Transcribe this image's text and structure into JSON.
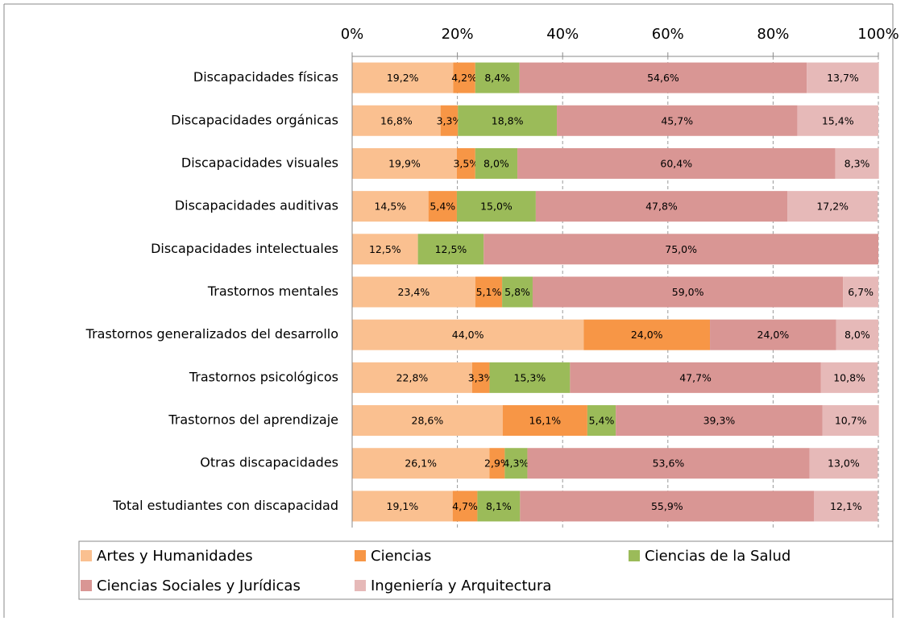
{
  "chart_data": {
    "type": "stacked-bar-horizontal",
    "categories": [
      "Discapacidades físicas",
      "Discapacidades orgánicas",
      "Discapacidades visuales",
      "Discapacidades auditivas",
      "Discapacidades intelectuales",
      "Trastornos mentales",
      "Trastornos generalizados del desarrollo",
      "Trastornos psicológicos",
      "Trastornos del aprendizaje",
      "Otras discapacidades",
      "Total estudiantes con discapacidad"
    ],
    "series": [
      {
        "name": "Artes y Humanidades",
        "color": "#fac090",
        "values": [
          19.2,
          16.8,
          19.9,
          14.5,
          12.5,
          23.4,
          44.0,
          22.8,
          28.6,
          26.1,
          19.1
        ],
        "value_labels": [
          "19,2%",
          "16,8%",
          "19,9%",
          "14,5%",
          "12,5%",
          "23,4%",
          "44,0%",
          "22,8%",
          "28,6%",
          "26,1%",
          "19,1%"
        ]
      },
      {
        "name": "Ciencias",
        "color": "#f79646",
        "values": [
          4.2,
          3.3,
          3.5,
          5.4,
          null,
          5.1,
          24.0,
          3.3,
          16.1,
          2.9,
          4.7
        ],
        "value_labels": [
          "4,2%",
          "3,3%",
          "3,5%",
          "5,4%",
          null,
          "5,1%",
          "24,0%",
          "3,3%",
          "16,1%",
          "2,9%",
          "4,7%"
        ]
      },
      {
        "name": "Ciencias de la Salud",
        "color": "#9bbb59",
        "values": [
          8.4,
          18.8,
          8.0,
          15.0,
          12.5,
          5.8,
          null,
          15.3,
          5.4,
          4.3,
          8.1
        ],
        "value_labels": [
          "8,4%",
          "18,8%",
          "8,0%",
          "15,0%",
          "12,5%",
          "5,8%",
          null,
          "15,3%",
          "5,4%",
          "4,3%",
          "8,1%"
        ]
      },
      {
        "name": "Ciencias Sociales y Jurídicas",
        "color": "#d99694",
        "values": [
          54.6,
          45.7,
          60.4,
          47.8,
          75.0,
          59.0,
          24.0,
          47.7,
          39.3,
          53.6,
          55.9
        ],
        "value_labels": [
          "54,6%",
          "45,7%",
          "60,4%",
          "47,8%",
          "75,0%",
          "59,0%",
          "24,0%",
          "47,7%",
          "39,3%",
          "53,6%",
          "55,9%"
        ]
      },
      {
        "name": "Ingeniería y Arquitectura",
        "color": "#e6b9b8",
        "values": [
          13.7,
          15.4,
          8.3,
          17.2,
          null,
          6.7,
          8.0,
          10.8,
          10.7,
          13.0,
          12.1
        ],
        "value_labels": [
          "13,7%",
          "15,4%",
          "8,3%",
          "17,2%",
          null,
          "6,7%",
          "8,0%",
          "10,8%",
          "10,7%",
          "13,0%",
          "12,1%"
        ]
      }
    ],
    "xlim": [
      0,
      100
    ],
    "xticks": [
      {
        "value": 0,
        "label": "0%"
      },
      {
        "value": 20,
        "label": "20%"
      },
      {
        "value": 40,
        "label": "40%"
      },
      {
        "value": 60,
        "label": "60%"
      },
      {
        "value": 80,
        "label": "80%"
      },
      {
        "value": 100,
        "label": "100%"
      }
    ],
    "grid": true,
    "legend": "bottom"
  }
}
